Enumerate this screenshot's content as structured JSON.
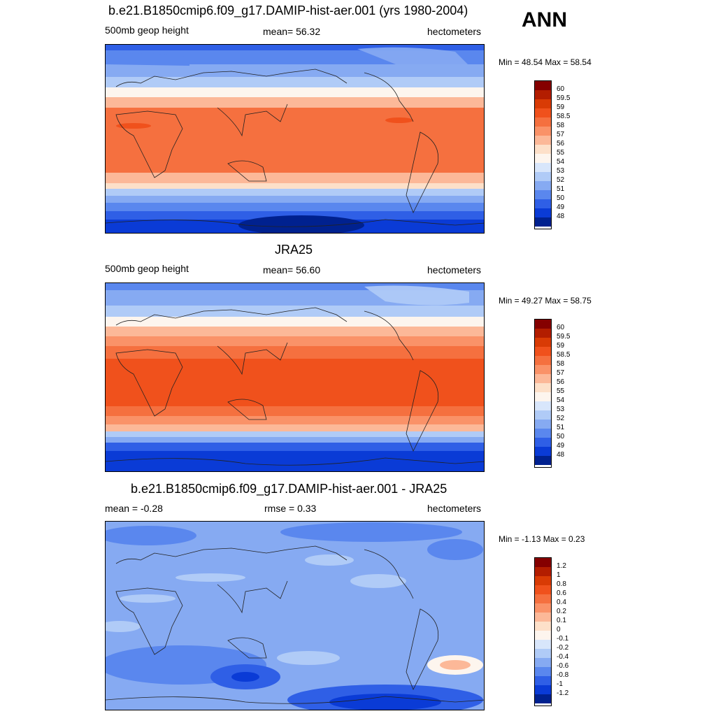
{
  "season": "ANN",
  "panels": [
    {
      "title": "b.e21.B1850cmip6.f09_g17.DAMIP-hist-aer.001 (yrs 1980-2004)",
      "left": "500mb geop height",
      "center": "mean=  56.32",
      "right": "hectometers",
      "minmax": "Min =  48.54 Max =  58.54",
      "colorbar_labels": [
        "60",
        "59.5",
        "59",
        "58.5",
        "58",
        "57",
        "56",
        "55",
        "54",
        "53",
        "52",
        "51",
        "50",
        "49",
        "48"
      ]
    },
    {
      "title": "JRA25",
      "left": "500mb geop height",
      "center": "mean=  56.60",
      "right": "hectometers",
      "minmax": "Min =  49.27 Max =  58.75",
      "colorbar_labels": [
        "60",
        "59.5",
        "59",
        "58.5",
        "58",
        "57",
        "56",
        "55",
        "54",
        "53",
        "52",
        "51",
        "50",
        "49",
        "48"
      ]
    },
    {
      "title": "b.e21.B1850cmip6.f09_g17.DAMIP-hist-aer.001 - JRA25",
      "left": "mean =  -0.28",
      "center": "rmse =   0.33",
      "right": "hectometers",
      "minmax": "Min =  -1.13 Max =   0.23",
      "colorbar_labels": [
        "1.2",
        "1",
        "0.8",
        "0.6",
        "0.4",
        "0.2",
        "0.1",
        "0",
        "-0.1",
        "-0.2",
        "-0.4",
        "-0.6",
        "-0.8",
        "-1",
        "-1.2"
      ]
    }
  ],
  "colors": {
    "colorbar": [
      "#850000",
      "#b31d00",
      "#d93b05",
      "#f0511c",
      "#f5703f",
      "#fa9268",
      "#fcb898",
      "#fde0c9",
      "#fdf5ee",
      "#d8e6fb",
      "#b0cbf7",
      "#86aaf2",
      "#5a87ee",
      "#2f5fe6",
      "#0a3bd6",
      "#00218f"
    ]
  }
}
